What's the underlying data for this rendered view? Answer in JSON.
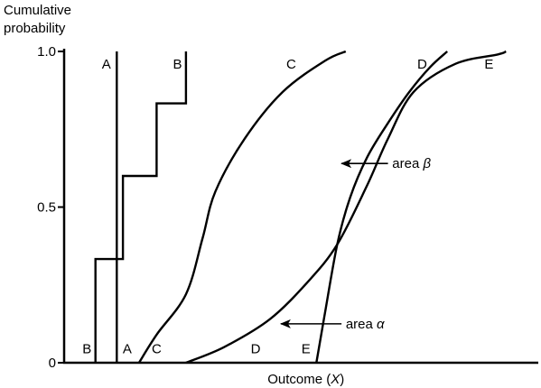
{
  "chart_data": {
    "type": "line",
    "title": "",
    "ylabel_lines": [
      "Cumulative",
      "probability"
    ],
    "xlabel_prefix": "Outcome (",
    "xlabel_var": "X",
    "xlabel_suffix": ")",
    "y_ticks": [
      {
        "value": 0,
        "label": "0"
      },
      {
        "value": 0.5,
        "label": "0.5"
      },
      {
        "value": 1.0,
        "label": "1.0"
      }
    ],
    "ylim": [
      0,
      1
    ],
    "xlim": [
      0,
      100
    ],
    "grid": false,
    "series": [
      {
        "id": "A",
        "label": "A",
        "kind": "step",
        "points": [
          [
            11.1,
            0
          ],
          [
            11.1,
            1.0
          ]
        ]
      },
      {
        "id": "B",
        "label": "B",
        "kind": "step",
        "points": [
          [
            6.6,
            0
          ],
          [
            6.6,
            0.333
          ],
          [
            12.4,
            0.333
          ],
          [
            12.4,
            0.6
          ],
          [
            19.5,
            0.6
          ],
          [
            19.5,
            0.833
          ],
          [
            25.7,
            0.833
          ],
          [
            25.7,
            1.0
          ]
        ]
      },
      {
        "id": "C",
        "label": "C",
        "kind": "smooth",
        "points": [
          [
            15.8,
            0
          ],
          [
            19.5,
            0.09
          ],
          [
            25.7,
            0.22
          ],
          [
            29.2,
            0.4
          ],
          [
            31.9,
            0.55
          ],
          [
            38.1,
            0.72
          ],
          [
            46.1,
            0.87
          ],
          [
            55.0,
            0.97
          ],
          [
            59.4,
            1.0
          ]
        ]
      },
      {
        "id": "D",
        "label": "D",
        "kind": "smooth",
        "points": [
          [
            53.2,
            0
          ],
          [
            54.9,
            0.15
          ],
          [
            57.6,
            0.38
          ],
          [
            60.3,
            0.53
          ],
          [
            63.9,
            0.66
          ],
          [
            68.3,
            0.77
          ],
          [
            72.8,
            0.87
          ],
          [
            77.2,
            0.95
          ],
          [
            80.8,
            1.0
          ]
        ]
      },
      {
        "id": "E",
        "label": "E",
        "kind": "smooth",
        "points": [
          [
            25.7,
            0
          ],
          [
            33.7,
            0.05
          ],
          [
            43.4,
            0.14
          ],
          [
            51.4,
            0.26
          ],
          [
            57.6,
            0.38
          ],
          [
            63.9,
            0.57
          ],
          [
            68.3,
            0.72
          ],
          [
            73.7,
            0.87
          ],
          [
            82.5,
            0.96
          ],
          [
            91.4,
            0.99
          ],
          [
            93.2,
            1.0
          ]
        ]
      }
    ],
    "curve_labels": [
      {
        "text": "A",
        "x": 8.9,
        "y": 0.96
      },
      {
        "text": "B",
        "x": 23.9,
        "y": 0.96
      },
      {
        "text": "C",
        "x": 47.9,
        "y": 0.96
      },
      {
        "text": "D",
        "x": 75.5,
        "y": 0.96
      },
      {
        "text": "E",
        "x": 89.6,
        "y": 0.96
      },
      {
        "text": "B",
        "x": 4.8,
        "y": 0.045
      },
      {
        "text": "A",
        "x": 13.3,
        "y": 0.045
      },
      {
        "text": "C",
        "x": 19.5,
        "y": 0.045
      },
      {
        "text": "D",
        "x": 40.4,
        "y": 0.045
      },
      {
        "text": "E",
        "x": 51.0,
        "y": 0.045
      }
    ],
    "annotations": [
      {
        "id": "area-beta",
        "prefix": "area ",
        "symbol": "β",
        "text_at": [
          69.2,
          0.64
        ],
        "arrow_from": [
          68.3,
          0.64
        ],
        "arrow_to": [
          58.5,
          0.64
        ]
      },
      {
        "id": "area-alpha",
        "prefix": "area ",
        "symbol": "α",
        "text_at": [
          59.4,
          0.125
        ],
        "arrow_from": [
          58.5,
          0.125
        ],
        "arrow_to": [
          45.7,
          0.125
        ]
      }
    ]
  }
}
